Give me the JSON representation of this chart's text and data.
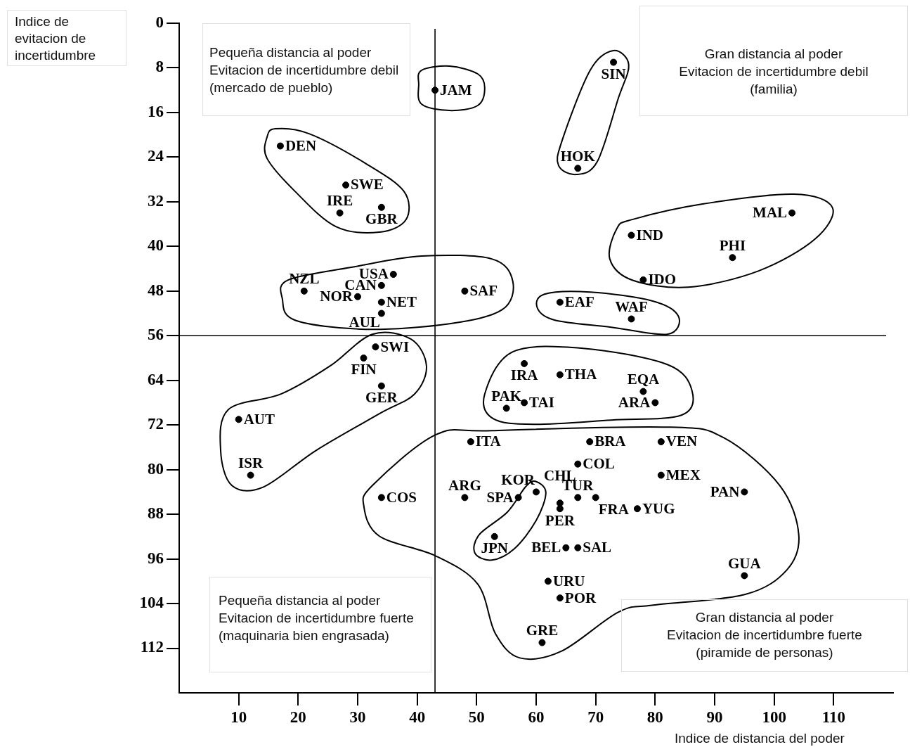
{
  "chart_data": {
    "type": "scatter",
    "xlabel": "Indice de distancia del poder",
    "ylabel": "Indice de evitacion de incertidumbre",
    "xlim": [
      0,
      120
    ],
    "ylim": [
      120,
      0
    ],
    "xticks": [
      10,
      20,
      30,
      40,
      50,
      60,
      70,
      80,
      90,
      100,
      110
    ],
    "yticks": [
      0,
      8,
      16,
      24,
      32,
      40,
      48,
      56,
      64,
      72,
      80,
      88,
      96,
      104,
      112
    ],
    "grid": false,
    "legend": false,
    "marker": "circle",
    "series": [
      {
        "color": "#000000",
        "x": [
          43,
          73,
          67,
          17,
          28,
          27,
          34,
          103,
          76,
          93,
          78,
          36,
          34,
          21,
          30,
          34,
          34,
          48,
          64,
          76,
          33,
          31,
          34,
          10,
          12,
          58,
          64,
          78,
          80,
          55,
          58,
          49,
          69,
          81,
          67,
          81,
          64,
          67,
          70,
          95,
          77,
          48,
          60,
          57,
          34,
          64,
          53,
          65,
          67,
          62,
          95,
          64,
          61
        ],
        "values": [
          12,
          7,
          26,
          22,
          29,
          34,
          33,
          34,
          38,
          42,
          46,
          45,
          47,
          48,
          49,
          50,
          52,
          48,
          50,
          53,
          58,
          60,
          65,
          71,
          81,
          61,
          63,
          66,
          68,
          69,
          68,
          75,
          75,
          75,
          79,
          81,
          86,
          85,
          85,
          84,
          87,
          85,
          84,
          85,
          85,
          87,
          92,
          94,
          94,
          100,
          99,
          103,
          111
        ]
      }
    ],
    "ref_lines": [
      {
        "axis": "x",
        "value": 43
      },
      {
        "axis": "y",
        "value": 56
      }
    ],
    "annotations": [
      "Pequeña distancia al poder\nEvitacion de incertidumbre debil\n(mercado de pueblo)",
      "Gran distancia al poder\nEvitacion de incertidumbre debil\n(familia)",
      "Pequeña distancia al poder\nEvitacion de incertidumbre fuerte\n(maquinaria bien engrasada)",
      "Gran distancia al poder\nEvitacion de incertidumbre fuerte\n(piramide de personas)",
      {
        "text": "JAM",
        "x": 43,
        "y": 12
      },
      {
        "text": "SIN",
        "x": 73,
        "y": 7
      },
      {
        "text": "HOK",
        "x": 67,
        "y": 26
      },
      {
        "text": "DEN",
        "x": 17,
        "y": 22
      },
      {
        "text": "SWE",
        "x": 28,
        "y": 29
      },
      {
        "text": "IRE",
        "x": 27,
        "y": 34
      },
      {
        "text": "GBR",
        "x": 34,
        "y": 33
      },
      {
        "text": "MAL",
        "x": 103,
        "y": 34
      },
      {
        "text": "IND",
        "x": 76,
        "y": 38
      },
      {
        "text": "PHI",
        "x": 93,
        "y": 42
      },
      {
        "text": "IDO",
        "x": 78,
        "y": 46
      },
      {
        "text": "USA",
        "x": 36,
        "y": 45
      },
      {
        "text": "CAN",
        "x": 34,
        "y": 47
      },
      {
        "text": "NZL",
        "x": 21,
        "y": 48
      },
      {
        "text": "NOR",
        "x": 30,
        "y": 49
      },
      {
        "text": "NET",
        "x": 34,
        "y": 50
      },
      {
        "text": "AUL",
        "x": 34,
        "y": 52
      },
      {
        "text": "SAF",
        "x": 48,
        "y": 48
      },
      {
        "text": "EAF",
        "x": 64,
        "y": 50
      },
      {
        "text": "WAF",
        "x": 76,
        "y": 53
      },
      {
        "text": "SWI",
        "x": 33,
        "y": 58
      },
      {
        "text": "FIN",
        "x": 31,
        "y": 60
      },
      {
        "text": "GER",
        "x": 34,
        "y": 65
      },
      {
        "text": "AUT",
        "x": 10,
        "y": 71
      },
      {
        "text": "ISR",
        "x": 12,
        "y": 81
      },
      {
        "text": "IRA",
        "x": 58,
        "y": 61
      },
      {
        "text": "THA",
        "x": 64,
        "y": 63
      },
      {
        "text": "EQA",
        "x": 78,
        "y": 66
      },
      {
        "text": "ARA",
        "x": 80,
        "y": 68
      },
      {
        "text": "PAK",
        "x": 55,
        "y": 69
      },
      {
        "text": "TAI",
        "x": 58,
        "y": 68
      },
      {
        "text": "ITA",
        "x": 49,
        "y": 75
      },
      {
        "text": "BRA",
        "x": 69,
        "y": 75
      },
      {
        "text": "VEN",
        "x": 81,
        "y": 75
      },
      {
        "text": "COL",
        "x": 67,
        "y": 79
      },
      {
        "text": "MEX",
        "x": 81,
        "y": 81
      },
      {
        "text": "CHL",
        "x": 64,
        "y": 86
      },
      {
        "text": "TUR",
        "x": 67,
        "y": 85
      },
      {
        "text": "FRA",
        "x": 70,
        "y": 85
      },
      {
        "text": "PAN",
        "x": 95,
        "y": 84
      },
      {
        "text": "YUG",
        "x": 77,
        "y": 87
      },
      {
        "text": "ARG",
        "x": 48,
        "y": 85
      },
      {
        "text": "KOR",
        "x": 60,
        "y": 84
      },
      {
        "text": "SPA",
        "x": 57,
        "y": 85
      },
      {
        "text": "COS",
        "x": 34,
        "y": 85
      },
      {
        "text": "PER",
        "x": 64,
        "y": 87
      },
      {
        "text": "JPN",
        "x": 53,
        "y": 92
      },
      {
        "text": "BEL",
        "x": 65,
        "y": 94
      },
      {
        "text": "SAL",
        "x": 67,
        "y": 94
      },
      {
        "text": "URU",
        "x": 62,
        "y": 100
      },
      {
        "text": "GUA",
        "x": 95,
        "y": 99
      },
      {
        "text": "POR",
        "x": 64,
        "y": 103
      },
      {
        "text": "GRE",
        "x": 61,
        "y": 111
      }
    ]
  }
}
